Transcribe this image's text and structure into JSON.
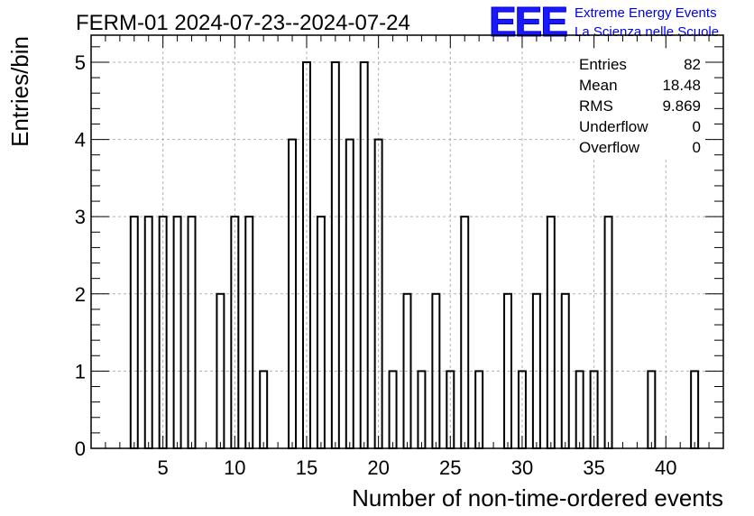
{
  "title": "FERM-01 2024-07-23--2024-07-24",
  "logo": {
    "mark": "EEE",
    "line1": "Extreme Energy Events",
    "line2": "La Scienza nelle Scuole"
  },
  "stats": [
    {
      "label": "Entries",
      "value": "82"
    },
    {
      "label": "Mean",
      "value": "18.48"
    },
    {
      "label": "RMS",
      "value": "9.869"
    },
    {
      "label": "Underflow",
      "value": "0"
    },
    {
      "label": "Overflow",
      "value": "0"
    }
  ],
  "chart_data": {
    "type": "bar",
    "style": "histogram-outline",
    "xlabel": "Number of non-time-ordered events",
    "ylabel": "Entries/bin",
    "xlim": [
      0,
      44
    ],
    "ylim": [
      0,
      5.35
    ],
    "xticks": [
      5,
      10,
      15,
      20,
      25,
      30,
      35,
      40
    ],
    "yticks": [
      0,
      1,
      2,
      3,
      4,
      5
    ],
    "grid": true,
    "bin_width": 0.5,
    "bins": [
      {
        "x": 3,
        "count": 3
      },
      {
        "x": 4,
        "count": 3
      },
      {
        "x": 5,
        "count": 3
      },
      {
        "x": 6,
        "count": 3
      },
      {
        "x": 7,
        "count": 3
      },
      {
        "x": 9,
        "count": 2
      },
      {
        "x": 10,
        "count": 3
      },
      {
        "x": 11,
        "count": 3
      },
      {
        "x": 12,
        "count": 1
      },
      {
        "x": 14,
        "count": 4
      },
      {
        "x": 15,
        "count": 5
      },
      {
        "x": 16,
        "count": 3
      },
      {
        "x": 17,
        "count": 5
      },
      {
        "x": 18,
        "count": 4
      },
      {
        "x": 19,
        "count": 5
      },
      {
        "x": 20,
        "count": 4
      },
      {
        "x": 21,
        "count": 1
      },
      {
        "x": 22,
        "count": 2
      },
      {
        "x": 23,
        "count": 1
      },
      {
        "x": 24,
        "count": 2
      },
      {
        "x": 25,
        "count": 1
      },
      {
        "x": 26,
        "count": 3
      },
      {
        "x": 27,
        "count": 1
      },
      {
        "x": 29,
        "count": 2
      },
      {
        "x": 30,
        "count": 1
      },
      {
        "x": 31,
        "count": 2
      },
      {
        "x": 32,
        "count": 3
      },
      {
        "x": 33,
        "count": 2
      },
      {
        "x": 34,
        "count": 1
      },
      {
        "x": 35,
        "count": 1
      },
      {
        "x": 36,
        "count": 3
      },
      {
        "x": 39,
        "count": 1
      },
      {
        "x": 42,
        "count": 1
      }
    ]
  }
}
